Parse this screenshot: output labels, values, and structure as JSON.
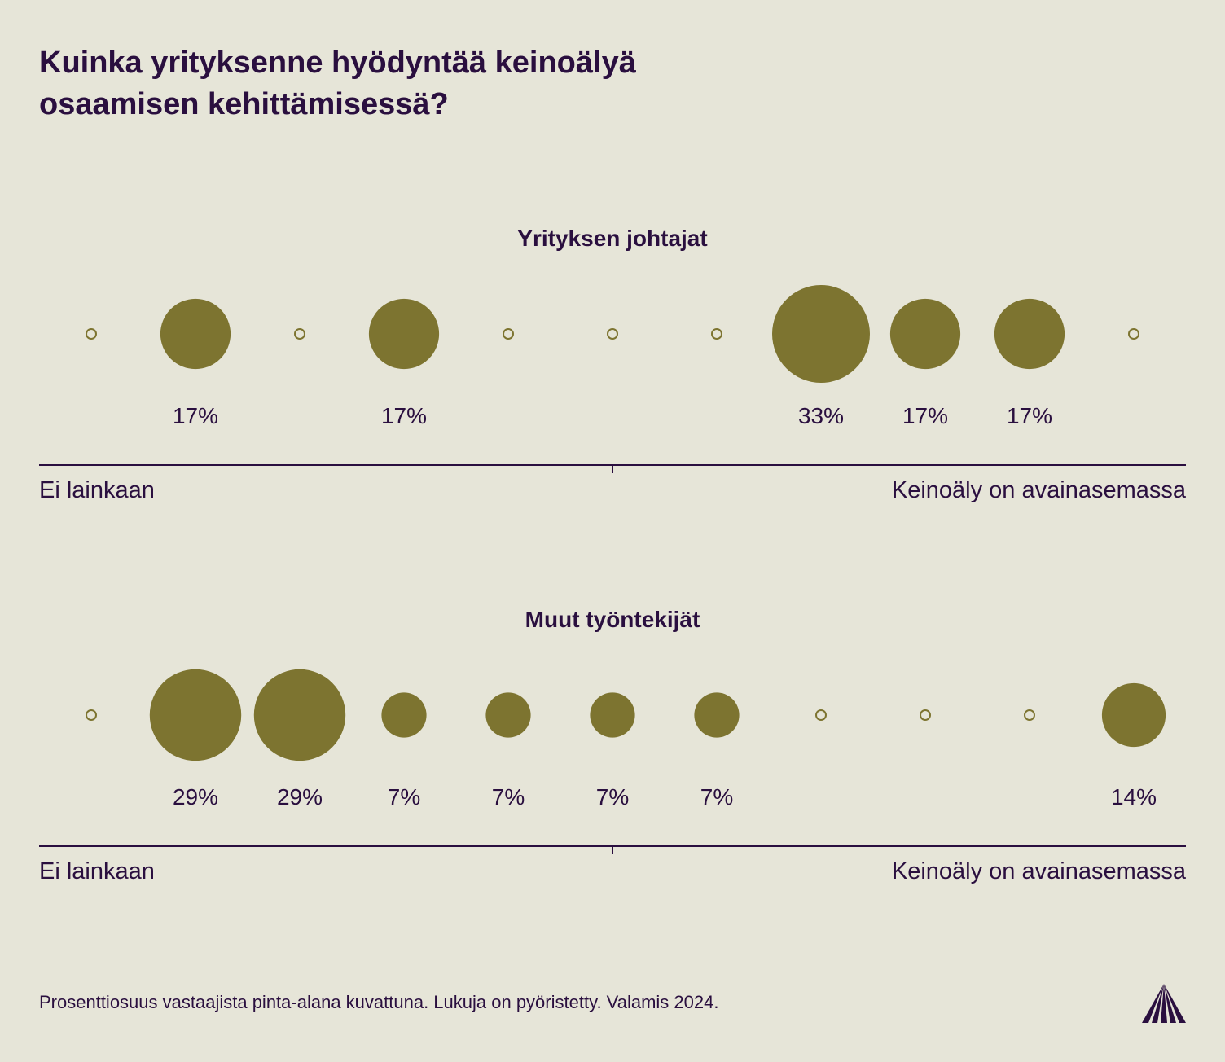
{
  "title_lines": [
    "Kuinka yrityksenne hyödyntää keinoälyä",
    "osaamisen kehittämisessä?"
  ],
  "footnote": "Prosenttiosuus vastaajista pinta-alana kuvattuna. Lukuja on pyöristetty. Valamis 2024.",
  "logo_icon": "valamis-logo-icon",
  "colors": {
    "background": "#e6e5d8",
    "bubble": "#7d7430",
    "text": "#2a0f3f"
  },
  "chart_data": [
    {
      "type": "bubble",
      "title": "Yrityksen johtajat",
      "scale_points": 11,
      "left_label": "Ei lainkaan",
      "right_label": "Keinoäly on avainasemassa",
      "values": [
        0,
        17,
        0,
        17,
        0,
        0,
        0,
        33,
        17,
        17,
        0
      ],
      "labels": [
        "",
        "17%",
        "",
        "17%",
        "",
        "",
        "",
        "33%",
        "17%",
        "17%",
        ""
      ]
    },
    {
      "type": "bubble",
      "title": "Muut työntekijät",
      "scale_points": 11,
      "left_label": "Ei lainkaan",
      "right_label": "Keinoäly on avainasemassa",
      "values": [
        0,
        29,
        29,
        7,
        7,
        7,
        7,
        0,
        0,
        0,
        14
      ],
      "labels": [
        "",
        "29%",
        "29%",
        "7%",
        "7%",
        "7%",
        "7%",
        "",
        "",
        "",
        "14%"
      ]
    }
  ]
}
